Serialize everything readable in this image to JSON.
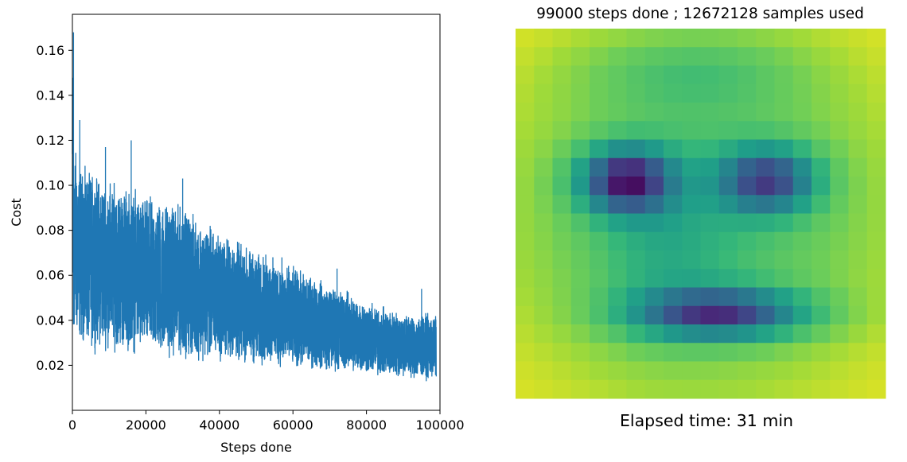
{
  "chart_data": [
    {
      "type": "line",
      "title": "",
      "xlabel": "Steps done",
      "ylabel": "Cost",
      "xlim": [
        0,
        100000
      ],
      "ylim": [
        0.0,
        0.176
      ],
      "xticks": [
        0,
        20000,
        40000,
        60000,
        80000,
        100000
      ],
      "xtick_labels": [
        "0",
        "20000",
        "40000",
        "60000",
        "80000",
        "100000"
      ],
      "yticks": [
        0.02,
        0.04,
        0.06,
        0.08,
        0.1,
        0.12,
        0.14,
        0.16
      ],
      "ytick_labels": [
        "0.02",
        "0.04",
        "0.06",
        "0.08",
        "0.10",
        "0.12",
        "0.14",
        "0.16"
      ],
      "grid": false,
      "series": [
        {
          "color": "#1f77b4",
          "envelope": {
            "x": [
              0,
              500,
              2000,
              5000,
              10000,
              15000,
              20000,
              25000,
              30000,
              35000,
              40000,
              45000,
              50000,
              55000,
              60000,
              65000,
              70000,
              75000,
              80000,
              85000,
              90000,
              95000,
              99000
            ],
            "upper": [
              0.168,
              0.125,
              0.112,
              0.11,
              0.106,
              0.103,
              0.099,
              0.097,
              0.094,
              0.088,
              0.082,
              0.078,
              0.073,
              0.07,
              0.066,
              0.062,
              0.058,
              0.055,
              0.05,
              0.047,
              0.045,
              0.044,
              0.044
            ],
            "lower": [
              0.03,
              0.027,
              0.026,
              0.024,
              0.023,
              0.022,
              0.021,
              0.02,
              0.02,
              0.019,
              0.019,
              0.018,
              0.017,
              0.017,
              0.016,
              0.016,
              0.015,
              0.015,
              0.014,
              0.013,
              0.013,
              0.012,
              0.012
            ]
          },
          "spikes": [
            {
              "x": 300,
              "y": 0.168
            },
            {
              "x": 2000,
              "y": 0.129
            },
            {
              "x": 9000,
              "y": 0.117
            },
            {
              "x": 16000,
              "y": 0.12
            },
            {
              "x": 30000,
              "y": 0.103
            },
            {
              "x": 57000,
              "y": 0.068
            },
            {
              "x": 72000,
              "y": 0.063
            },
            {
              "x": 95000,
              "y": 0.054
            }
          ]
        }
      ]
    },
    {
      "type": "heatmap",
      "title": "99000 steps done ; 12672128 samples used",
      "caption": "Elapsed time: 31 min",
      "colormap": "viridis",
      "rows": 20,
      "cols": 20
    }
  ]
}
